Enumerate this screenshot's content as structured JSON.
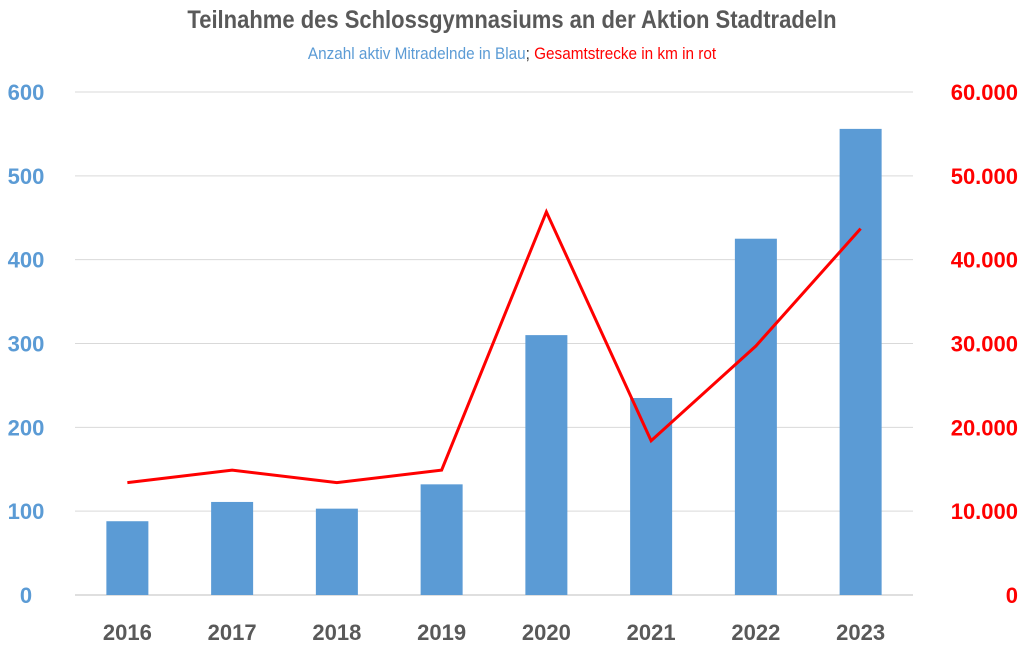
{
  "chart_data": {
    "type": "bar",
    "title": "Teilnahme des Schlossgymnasiums an der Aktion Stadtradeln",
    "subtitle_blue": "Anzahl aktiv Mitradelnde in Blau",
    "subtitle_sep": ";",
    "subtitle_red": " Gesamtstrecke in km in rot",
    "categories": [
      "2016",
      "2017",
      "2018",
      "2019",
      "2020",
      "2021",
      "2022",
      "2023"
    ],
    "series": [
      {
        "name": "Anzahl aktiv Mitradelnde",
        "type": "bar",
        "axis": "left",
        "color": "#5b9bd5",
        "values": [
          88,
          111,
          103,
          132,
          310,
          235,
          425,
          556
        ]
      },
      {
        "name": "Gesamtstrecke in km",
        "type": "line",
        "axis": "right",
        "color": "#ff0000",
        "values": [
          13400,
          14900,
          13400,
          14900,
          45700,
          18400,
          29700,
          43700
        ]
      }
    ],
    "ylim_left": [
      0,
      600
    ],
    "yticks_left": [
      "0",
      "100",
      "200",
      "300",
      "400",
      "500",
      "600"
    ],
    "ylim_right": [
      0,
      60000
    ],
    "yticks_right": [
      "0",
      "10.000",
      "20.000",
      "30.000",
      "40.000",
      "50.000",
      "60.000"
    ],
    "grid": true,
    "colors": {
      "left_axis": "#5b9bd5",
      "right_axis": "#ff0000",
      "title": "#595959",
      "grid": "#d9d9d9"
    }
  }
}
